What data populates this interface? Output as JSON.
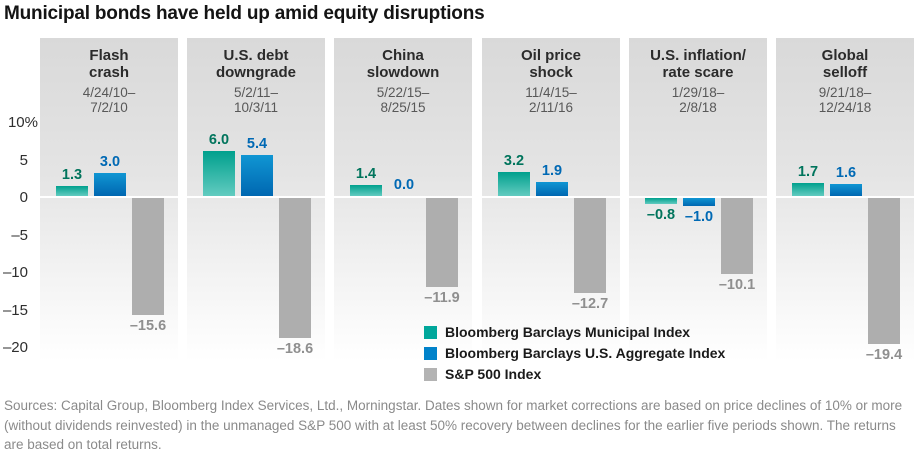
{
  "title": "Municipal bonds have held up amid equity disruptions",
  "y_axis": {
    "tick_labels": [
      "10%",
      "5",
      "0",
      "–5",
      "–10",
      "–15",
      "–20"
    ],
    "tick_values": [
      10,
      5,
      0,
      -5,
      -10,
      -15,
      -20
    ]
  },
  "legend": {
    "items": [
      {
        "label": "Bloomberg Barclays Municipal Index",
        "color": "#00a79b",
        "series": "municipal"
      },
      {
        "label": "Bloomberg Barclays U.S. Aggregate Index",
        "color": "#0082ca",
        "series": "aggregate"
      },
      {
        "label": "S&P 500 Index",
        "color": "#b3b3b3",
        "series": "sp500"
      }
    ]
  },
  "colors": {
    "municipal_bar_top": "#00a08d",
    "municipal_bar_bottom": "#62cbc0",
    "municipal_label": "#00745c",
    "aggregate_bar_top": "#1096d3",
    "aggregate_bar_bottom": "#0067b1",
    "aggregate_label": "#0069b4",
    "sp500_bar": "#aeaeae",
    "sp500_label": "#8f8f8f"
  },
  "source_note": "Sources: Capital Group, Bloomberg Index Services, Ltd., Morningstar. Dates shown for market corrections are based on price declines of 10% or more (without dividends reinvested) in the unmanaged S&P 500 with at least 50% recovery between declines for the earlier five periods shown. The returns are based on total returns.",
  "chart_data": {
    "type": "bar",
    "ylim": [
      -20,
      10
    ],
    "unit": "%",
    "grid": "zero-line only",
    "legend_position": "bottom-center",
    "series": [
      "Bloomberg Barclays Municipal Index",
      "Bloomberg Barclays U.S. Aggregate Index",
      "S&P 500 Index"
    ],
    "panels": [
      {
        "event_lines": [
          "Flash",
          "crash"
        ],
        "date_lines": [
          "4/24/10–",
          "7/2/10"
        ],
        "values": [
          1.3,
          3.0,
          -15.6
        ],
        "value_labels": [
          "1.3",
          "3.0",
          "–15.6"
        ]
      },
      {
        "event_lines": [
          "U.S. debt",
          "downgrade"
        ],
        "date_lines": [
          "5/2/11–",
          "10/3/11"
        ],
        "values": [
          6.0,
          5.4,
          -18.6
        ],
        "value_labels": [
          "6.0",
          "5.4",
          "–18.6"
        ]
      },
      {
        "event_lines": [
          "China",
          "slowdown"
        ],
        "date_lines": [
          "5/22/15–",
          "8/25/15"
        ],
        "values": [
          1.4,
          0.0,
          -11.9
        ],
        "value_labels": [
          "1.4",
          "0.0",
          "–11.9"
        ]
      },
      {
        "event_lines": [
          "Oil price",
          "shock"
        ],
        "date_lines": [
          "11/4/15–",
          "2/11/16"
        ],
        "values": [
          3.2,
          1.9,
          -12.7
        ],
        "value_labels": [
          "3.2",
          "1.9",
          "–12.7"
        ]
      },
      {
        "event_lines": [
          "U.S. inflation/",
          "rate scare"
        ],
        "date_lines": [
          "1/29/18–",
          "2/8/18"
        ],
        "values": [
          -0.8,
          -1.0,
          -10.1
        ],
        "value_labels": [
          "–0.8",
          "–1.0",
          "–10.1"
        ]
      },
      {
        "event_lines": [
          "Global",
          "selloff"
        ],
        "date_lines": [
          "9/21/18–",
          "12/24/18"
        ],
        "values": [
          1.7,
          1.6,
          -19.4
        ],
        "value_labels": [
          "1.7",
          "1.6",
          "–19.4"
        ]
      }
    ]
  }
}
